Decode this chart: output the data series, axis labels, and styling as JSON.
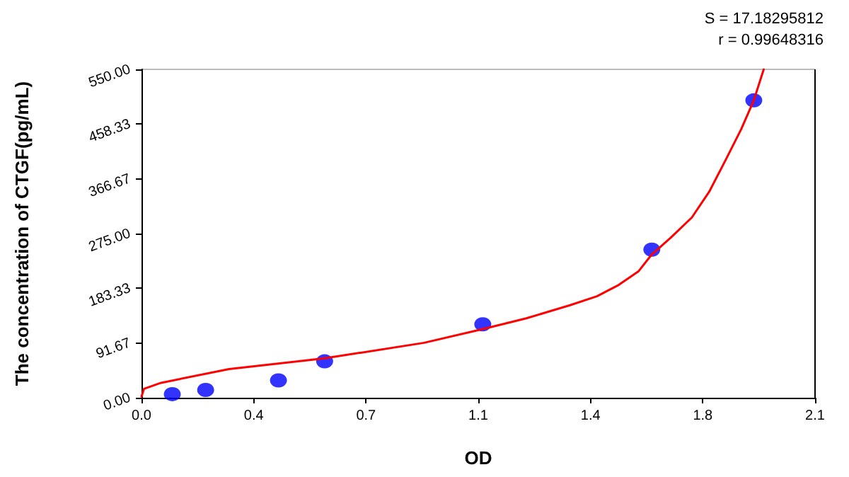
{
  "chart_data": {
    "type": "scatter",
    "xlabel": "OD",
    "ylabel": "The concentration of CTGF(pg/mL)",
    "annotations": [
      "S = 17.18295812",
      "r = 0.99648316"
    ],
    "xlim": [
      0,
      2.1
    ],
    "ylim": [
      0,
      550
    ],
    "xticks": [
      {
        "value": 0,
        "label": "0.0"
      },
      {
        "value": 0.35,
        "label": "0.4"
      },
      0.7,
      {
        "value": 1.05,
        "label": "1.1"
      },
      1.4,
      {
        "value": 1.75,
        "label": "1.8"
      },
      2.1
    ],
    "yticks": [
      {
        "value": 0,
        "label": "0.00"
      },
      91.67,
      183.33,
      {
        "value": 275,
        "label": "275.00"
      },
      366.67,
      458.33,
      {
        "value": 550,
        "label": "550.00"
      }
    ],
    "grid": false,
    "series": [
      {
        "color": "#0000ff",
        "marker": "circle",
        "x": [
          0.096,
          0.2,
          0.427,
          0.571,
          1.064,
          1.591,
          1.909
        ],
        "values": [
          6,
          13,
          29,
          61,
          123,
          248,
          498
        ]
      },
      {
        "type": "line",
        "color": "#ff0000",
        "marker": "none",
        "line_style": "solid",
        "x": [
          0,
          0.008,
          0.061,
          0.273,
          0.571,
          0.881,
          1.064,
          1.2,
          1.336,
          1.42,
          1.488,
          1.55,
          1.591,
          1.65,
          1.716,
          1.77,
          1.822,
          1.87,
          1.909,
          1.94
        ],
        "values": [
          2,
          15,
          25,
          48,
          66,
          92,
          115,
          133,
          155,
          170,
          189,
          212,
          240,
          268,
          302,
          345,
          399,
          450,
          498,
          550
        ]
      }
    ]
  }
}
